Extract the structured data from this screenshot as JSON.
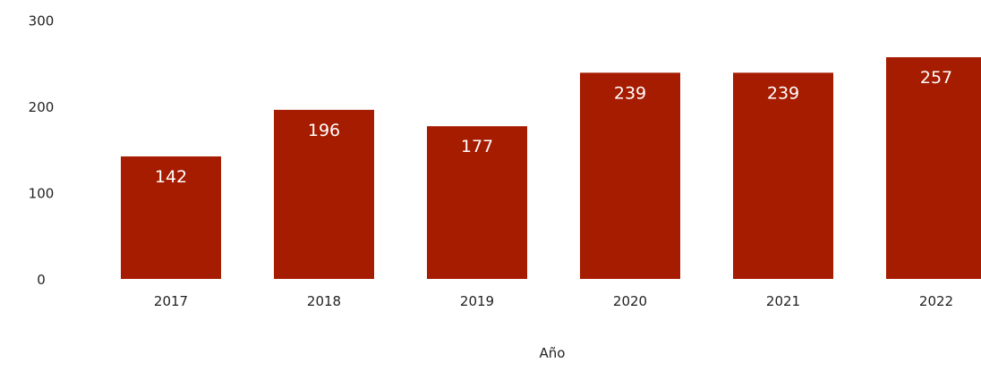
{
  "chart_data": {
    "type": "bar",
    "title": "",
    "xlabel": "Año",
    "ylabel": "",
    "categories": [
      "2017",
      "2018",
      "2019",
      "2020",
      "2021",
      "2022"
    ],
    "values": [
      142,
      196,
      177,
      239,
      239,
      257
    ],
    "data_labels": [
      "142",
      "196",
      "177",
      "239",
      "239",
      "257"
    ],
    "yticks": [
      0,
      100,
      200,
      300
    ],
    "ytick_labels": [
      "0",
      "100",
      "200",
      "300"
    ],
    "ylim": [
      0,
      300
    ],
    "grid": false,
    "legend": "none",
    "bar_color": "#a51c00",
    "label_color": "#ffffff"
  }
}
